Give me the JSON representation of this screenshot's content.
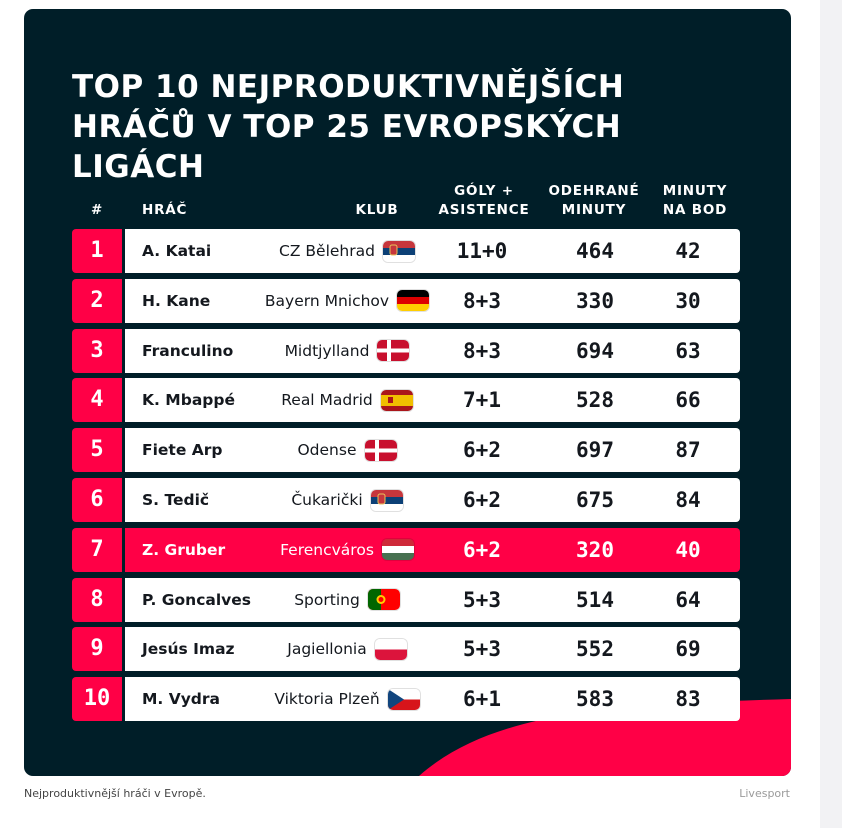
{
  "title_line1": "TOP 10 NEJPRODUKTIVNĚJŠÍCH",
  "title_line2": "HRÁČŮ V TOP 25 EVROPSKÝCH LIGÁCH",
  "header": {
    "rank": "#",
    "player": "HRÁČ",
    "club": "KLUB",
    "ga_line1": "GÓLY +",
    "ga_line2": "ASISTENCE",
    "minutes_line1": "ODEHRANÉ",
    "minutes_line2": "MINUTY",
    "mpb_line1": "MINUTY",
    "mpb_line2": "NA BOD"
  },
  "rows": [
    {
      "rank": "1",
      "player": "A. Katai",
      "club": "CZ Bělehrad",
      "flag": "serbia-flag",
      "ga": "11+0",
      "minutes": "464",
      "mpb": "42",
      "highlight": false
    },
    {
      "rank": "2",
      "player": "H. Kane",
      "club": "Bayern Mnichov",
      "flag": "germany-flag",
      "ga": "8+3",
      "minutes": "330",
      "mpb": "30",
      "highlight": false
    },
    {
      "rank": "3",
      "player": "Franculino",
      "club": "Midtjylland",
      "flag": "denmark-flag",
      "ga": "8+3",
      "minutes": "694",
      "mpb": "63",
      "highlight": false
    },
    {
      "rank": "4",
      "player": "K. Mbappé",
      "club": "Real Madrid",
      "flag": "spain-flag",
      "ga": "7+1",
      "minutes": "528",
      "mpb": "66",
      "highlight": false
    },
    {
      "rank": "5",
      "player": "Fiete Arp",
      "club": "Odense",
      "flag": "denmark-flag",
      "ga": "6+2",
      "minutes": "697",
      "mpb": "87",
      "highlight": false
    },
    {
      "rank": "6",
      "player": "S. Tedič",
      "club": "Čukarički",
      "flag": "serbia-flag",
      "ga": "6+2",
      "minutes": "675",
      "mpb": "84",
      "highlight": false
    },
    {
      "rank": "7",
      "player": "Z. Gruber",
      "club": "Ferencváros",
      "flag": "hungary-flag",
      "ga": "6+2",
      "minutes": "320",
      "mpb": "40",
      "highlight": true
    },
    {
      "rank": "8",
      "player": "P. Goncalves",
      "club": "Sporting",
      "flag": "portugal-flag",
      "ga": "5+3",
      "minutes": "514",
      "mpb": "64",
      "highlight": false
    },
    {
      "rank": "9",
      "player": "Jesús Imaz",
      "club": "Jagiellonia",
      "flag": "poland-flag",
      "ga": "5+3",
      "minutes": "552",
      "mpb": "69",
      "highlight": false
    },
    {
      "rank": "10",
      "player": "M. Vydra",
      "club": "Viktoria Plzeň",
      "flag": "czech-flag",
      "ga": "6+1",
      "minutes": "583",
      "mpb": "83",
      "highlight": false
    }
  ],
  "caption": "Nejproduktivnější hráči v Evropě.",
  "credit": "Livesport",
  "colors": {
    "background": "#001e28",
    "accent": "#ff0046",
    "row": "#ffffff",
    "text": "#14181e"
  }
}
